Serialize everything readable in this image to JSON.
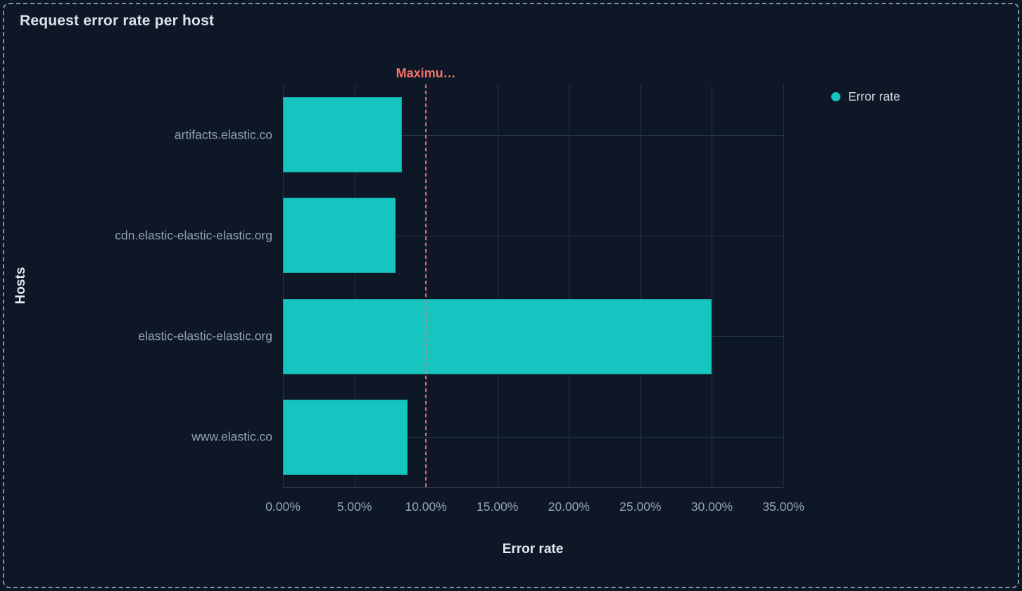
{
  "panel": {
    "title": "Request error rate per host"
  },
  "legend": {
    "position": "top-right",
    "items": [
      {
        "label": "Error rate",
        "color": "#16c5c0"
      }
    ]
  },
  "chart_data": {
    "type": "bar",
    "orientation": "horizontal",
    "title": "Request error rate per host",
    "categories": [
      "artifacts.elastic.co",
      "cdn.elastic-elastic-elastic.org",
      "elastic-elastic-elastic.org",
      "www.elastic.co"
    ],
    "series": [
      {
        "name": "Error rate",
        "color": "#16c5c0",
        "values": [
          8.3,
          7.9,
          30,
          8.7
        ]
      }
    ],
    "xlabel": "Error rate",
    "ylabel": "Hosts",
    "xlim": [
      0,
      35
    ],
    "x_tick_values": [
      0,
      5,
      10,
      15,
      20,
      25,
      30,
      35
    ],
    "x_ticks": [
      "0.00%",
      "5.00%",
      "10.00%",
      "15.00%",
      "20.00%",
      "25.00%",
      "30.00%",
      "35.00%"
    ],
    "grid": true,
    "legend_position": "top-right",
    "annotation": {
      "label": "Maximu…",
      "value": 10,
      "color": "#f6726a",
      "style": "dashed-vertical-line"
    }
  },
  "colors": {
    "background": "#0e1726",
    "bar": "#16c5c0",
    "annotation": "#f6726a",
    "gridline": "#26334b",
    "frame_border": "#97a7c3",
    "title_text": "#dbe2ec",
    "label_text": "#93a0b6"
  }
}
